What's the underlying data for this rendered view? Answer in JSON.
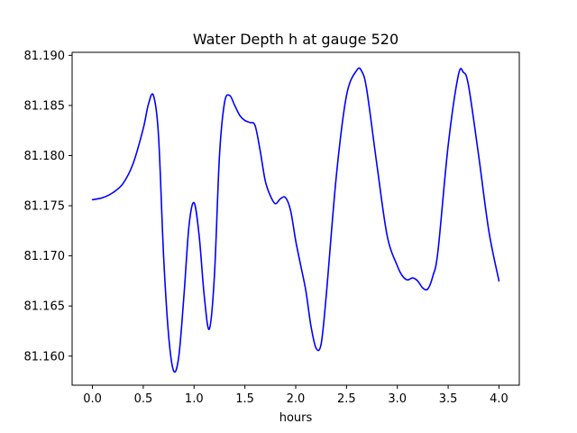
{
  "chart_data": {
    "type": "line",
    "title": "Water Depth h at gauge 520",
    "xlabel": "hours",
    "ylabel": "",
    "xlim": [
      -0.2,
      4.2
    ],
    "ylim": [
      81.1571,
      81.1903
    ],
    "grid": false,
    "x_ticks": [
      0.0,
      0.5,
      1.0,
      1.5,
      2.0,
      2.5,
      3.0,
      3.5,
      4.0
    ],
    "x_tick_labels": [
      "0.0",
      "0.5",
      "1.0",
      "1.5",
      "2.0",
      "2.5",
      "3.0",
      "3.5",
      "4.0"
    ],
    "y_ticks": [
      81.16,
      81.165,
      81.17,
      81.175,
      81.18,
      81.185,
      81.19
    ],
    "y_tick_labels": [
      "81.160",
      "81.165",
      "81.170",
      "81.175",
      "81.180",
      "81.185",
      "81.190"
    ],
    "series": [
      {
        "color": "#0000ff",
        "x": [
          0.0,
          0.1,
          0.2,
          0.3,
          0.4,
          0.5,
          0.55,
          0.6,
          0.65,
          0.7,
          0.75,
          0.8,
          0.85,
          0.9,
          0.95,
          1.0,
          1.05,
          1.1,
          1.15,
          1.2,
          1.25,
          1.3,
          1.35,
          1.4,
          1.45,
          1.5,
          1.55,
          1.6,
          1.65,
          1.7,
          1.75,
          1.8,
          1.85,
          1.9,
          1.95,
          2.0,
          2.05,
          2.1,
          2.15,
          2.2,
          2.25,
          2.3,
          2.4,
          2.5,
          2.6,
          2.65,
          2.7,
          2.8,
          2.9,
          3.0,
          3.05,
          3.1,
          3.15,
          3.2,
          3.25,
          3.3,
          3.35,
          3.4,
          3.5,
          3.6,
          3.65,
          3.7,
          3.8,
          3.9,
          4.0
        ],
        "y": [
          81.1756,
          81.1758,
          81.1763,
          81.1772,
          81.1792,
          81.1827,
          81.1851,
          81.186,
          81.182,
          81.17,
          81.162,
          81.1585,
          81.16,
          81.166,
          81.173,
          81.1753,
          81.172,
          81.166,
          81.1627,
          81.168,
          81.18,
          81.1853,
          81.186,
          81.185,
          81.184,
          81.1835,
          81.1833,
          81.183,
          81.1805,
          81.1775,
          81.176,
          81.1752,
          81.1757,
          81.1758,
          81.1745,
          81.1715,
          81.169,
          81.1665,
          81.163,
          81.1608,
          81.1612,
          81.166,
          81.178,
          81.186,
          81.1885,
          81.1884,
          81.1865,
          81.179,
          81.172,
          81.169,
          81.168,
          81.1676,
          81.1678,
          81.1675,
          81.1668,
          81.1667,
          81.168,
          81.1705,
          81.181,
          81.188,
          81.1883,
          81.187,
          81.18,
          81.1725,
          81.1675
        ]
      }
    ]
  }
}
